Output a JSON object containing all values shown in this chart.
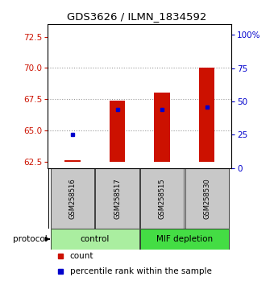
{
  "title": "GDS3626 / ILMN_1834592",
  "samples": [
    "GSM258516",
    "GSM258517",
    "GSM258515",
    "GSM258530"
  ],
  "groups": [
    {
      "label": "control",
      "indices": [
        0,
        1
      ],
      "color": "#AAEEA0"
    },
    {
      "label": "MIF depletion",
      "indices": [
        2,
        3
      ],
      "color": "#44DD44"
    }
  ],
  "ylim_left": [
    62.0,
    73.5
  ],
  "yticks_left": [
    62.5,
    65.0,
    67.5,
    70.0,
    72.5
  ],
  "ylim_right": [
    0,
    108.0
  ],
  "yticks_right": [
    0,
    25,
    50,
    75,
    100
  ],
  "ytick_labels_right": [
    "0",
    "25",
    "50",
    "75",
    "100%"
  ],
  "bar_color": "#CC1100",
  "bar_bottom": 62.5,
  "bar_tops": [
    62.65,
    67.4,
    68.05,
    70.05
  ],
  "percentile_values_pct": [
    25,
    44,
    44,
    46
  ],
  "percentile_color": "#0000CC",
  "bar_width": 0.35,
  "grid_yticks": [
    65.0,
    67.5,
    70.0
  ],
  "grid_color": "#999999",
  "background_color": "#ffffff",
  "plot_bg_color": "#ffffff",
  "sample_box_color": "#C8C8C8",
  "legend_count_color": "#CC1100",
  "legend_pct_color": "#0000CC"
}
